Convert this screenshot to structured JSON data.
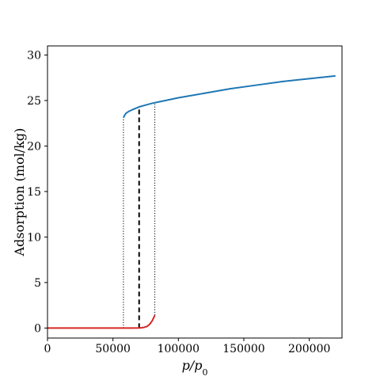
{
  "chart_data": {
    "type": "line",
    "xlabel": "p/p0",
    "ylabel": "Adsorption (mol/kg)",
    "xlim": [
      0,
      225000
    ],
    "ylim": [
      -1.1,
      31
    ],
    "xticks": [
      0,
      50000,
      100000,
      150000,
      200000
    ],
    "yticks": [
      0,
      5,
      10,
      15,
      20,
      25,
      30
    ],
    "grid": false,
    "colors": {
      "low_branch": "#d62728",
      "high_branch": "#1f77b4",
      "guides": "#000000"
    },
    "series": [
      {
        "id": "low_branch",
        "x": [
          0,
          10000,
          20000,
          30000,
          40000,
          50000,
          60000,
          65000,
          70000,
          72000,
          74000,
          76000,
          78000,
          80000,
          82000
        ],
        "y": [
          0,
          0,
          0,
          0,
          0,
          0,
          0,
          0,
          0.01,
          0.03,
          0.08,
          0.18,
          0.4,
          0.8,
          1.4
        ]
      },
      {
        "id": "high_branch",
        "x": [
          58000,
          59000,
          60000,
          62000,
          65000,
          70000,
          75000,
          80000,
          90000,
          100000,
          120000,
          140000,
          160000,
          180000,
          200000,
          220000
        ],
        "y": [
          23.1,
          23.4,
          23.6,
          23.8,
          24.0,
          24.3,
          24.5,
          24.7,
          25.0,
          25.3,
          25.8,
          26.3,
          26.7,
          27.1,
          27.4,
          27.7
        ]
      }
    ],
    "vertical_lines": [
      {
        "x": 58000,
        "y0": 0,
        "y1": 23.1,
        "style": "dotted"
      },
      {
        "x": 70000,
        "y0": 0,
        "y1": 24.3,
        "style": "dashed"
      },
      {
        "x": 82000,
        "y0": 1.4,
        "y1": 24.8,
        "style": "dotted"
      }
    ]
  }
}
